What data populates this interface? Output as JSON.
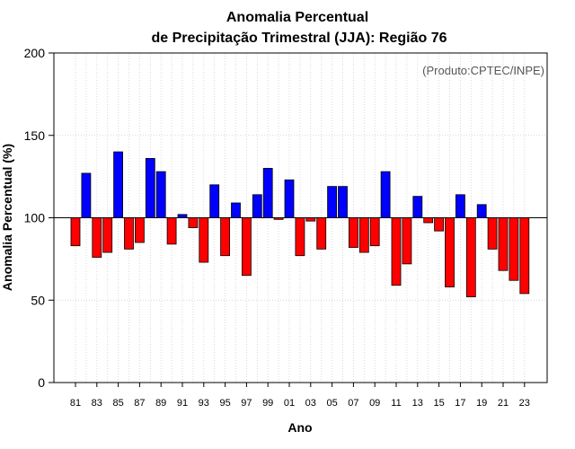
{
  "chart_data": {
    "type": "bar",
    "title_line1": "Anomalia Percentual",
    "title_line2": "de Precipitação Trimestral (JJA): Região 76",
    "xlabel": "Ano",
    "ylabel": "Anomalia Percentual (%)",
    "annotation": "(Produto:CPTEC/INPE)",
    "baseline": 100,
    "ylim": [
      0,
      200
    ],
    "yticks": [
      0,
      50,
      100,
      150,
      200
    ],
    "xtick_labels": [
      "81",
      "83",
      "85",
      "87",
      "89",
      "91",
      "93",
      "95",
      "97",
      "99",
      "01",
      "03",
      "05",
      "07",
      "09",
      "11",
      "13",
      "15",
      "17",
      "19",
      "21",
      "23"
    ],
    "categories": [
      "1981",
      "1982",
      "1983",
      "1984",
      "1985",
      "1986",
      "1987",
      "1988",
      "1989",
      "1990",
      "1991",
      "1992",
      "1993",
      "1994",
      "1995",
      "1996",
      "1997",
      "1998",
      "1999",
      "2000",
      "2001",
      "2002",
      "2003",
      "2004",
      "2005",
      "2006",
      "2007",
      "2008",
      "2009",
      "2010",
      "2011",
      "2012",
      "2013",
      "2014",
      "2015",
      "2016",
      "2017",
      "2018",
      "2019",
      "2020",
      "2021",
      "2022",
      "2023"
    ],
    "values": [
      83,
      127,
      76,
      79,
      140,
      81,
      85,
      136,
      128,
      84,
      102,
      94,
      73,
      120,
      77,
      109,
      65,
      114,
      130,
      99,
      123,
      77,
      98,
      81,
      119,
      119,
      82,
      79,
      83,
      128,
      59,
      72,
      113,
      97,
      92,
      58,
      114,
      52,
      108,
      81,
      68,
      62,
      54
    ],
    "colors": {
      "positive": "#0000ff",
      "negative": "#ff0000",
      "outline": "#000000",
      "grid": "#cccccc"
    },
    "grid": true
  }
}
